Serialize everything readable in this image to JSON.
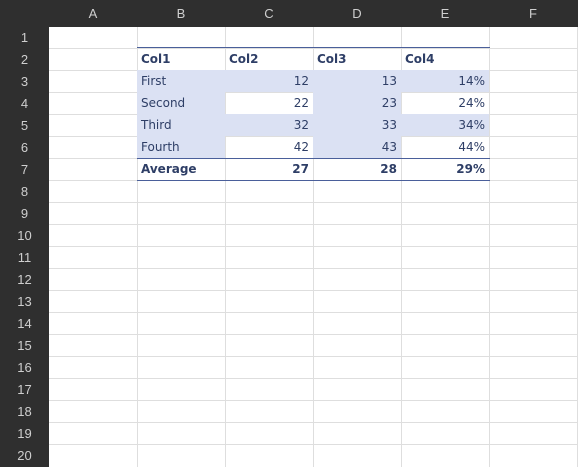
{
  "columns": [
    "A",
    "B",
    "C",
    "D",
    "E",
    "F"
  ],
  "rows": [
    "1",
    "2",
    "3",
    "4",
    "5",
    "6",
    "7",
    "8",
    "9",
    "10",
    "11",
    "12",
    "13",
    "14",
    "15",
    "16",
    "17",
    "18",
    "19",
    "20"
  ],
  "table": {
    "headers": [
      "Col1",
      "Col2",
      "Col3",
      "Col4"
    ],
    "rows": [
      [
        "First",
        "12",
        "13",
        "14%"
      ],
      [
        "Second",
        "22",
        "23",
        "24%"
      ],
      [
        "Third",
        "32",
        "33",
        "34%"
      ],
      [
        "Fourth",
        "42",
        "43",
        "44%"
      ]
    ],
    "average": [
      "Average",
      "27",
      "28",
      "29%"
    ]
  },
  "colors": {
    "header_bg": "#2f2f2f",
    "header_text": "#cfcfcf",
    "band": "#dbe1f3",
    "table_text": "#2e3e66",
    "table_rule": "#4a5f9a",
    "gridline": "#dedede"
  }
}
